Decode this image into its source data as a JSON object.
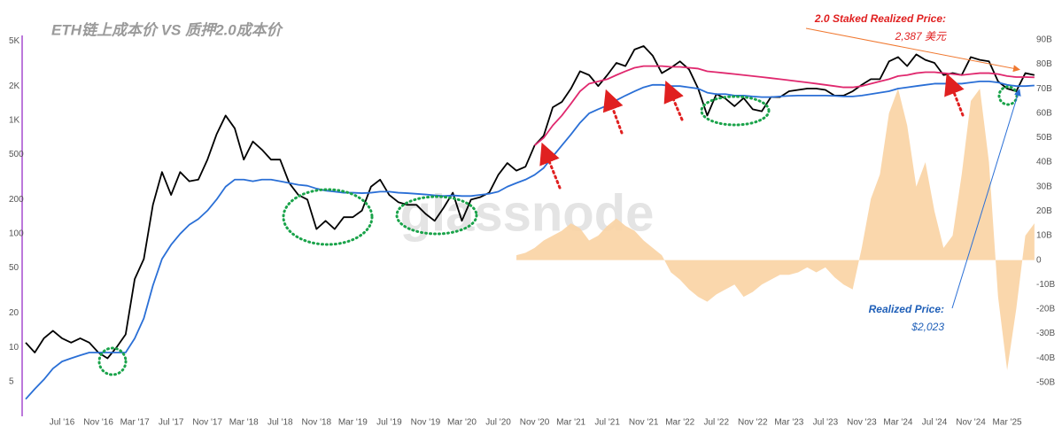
{
  "chart_data": {
    "type": "line",
    "title": "ETH链上成本价 VS 质押2.0成本价",
    "watermark": "glassnode",
    "yscale": "log",
    "ylim": [
      2.7,
      8000
    ],
    "yticks": [
      5,
      10,
      20,
      50,
      100,
      200,
      500,
      {
        "value": 1000,
        "label": "1K"
      },
      {
        "value": 2000,
        "label": "2K"
      },
      {
        "value": 5000,
        "label": "5K"
      }
    ],
    "y2lim": [
      -62,
      99
    ],
    "y2ticks": [
      {
        "value": -50,
        "label": "-50B"
      },
      {
        "value": -40,
        "label": "-40B"
      },
      {
        "value": -30,
        "label": "-30B"
      },
      {
        "value": -20,
        "label": "-20B"
      },
      {
        "value": -10,
        "label": "-10B"
      },
      0,
      {
        "value": 10,
        "label": "10B"
      },
      {
        "value": 20,
        "label": "20B"
      },
      {
        "value": 30,
        "label": "30B"
      },
      {
        "value": 40,
        "label": "40B"
      },
      {
        "value": 50,
        "label": "50B"
      },
      {
        "value": 60,
        "label": "60B"
      },
      {
        "value": 70,
        "label": "70B"
      },
      {
        "value": 80,
        "label": "80B"
      },
      {
        "value": 90,
        "label": "90B"
      }
    ],
    "xticks": [
      {
        "value": "2016-07",
        "label": "Jul '16"
      },
      {
        "value": "2016-11",
        "label": "Nov '16"
      },
      {
        "value": "2017-03",
        "label": "Mar '17"
      },
      {
        "value": "2017-07",
        "label": "Jul '17"
      },
      {
        "value": "2017-11",
        "label": "Nov '17"
      },
      {
        "value": "2018-03",
        "label": "Mar '18"
      },
      {
        "value": "2018-07",
        "label": "Jul '18"
      },
      {
        "value": "2018-11",
        "label": "Nov '18"
      },
      {
        "value": "2019-03",
        "label": "Mar '19"
      },
      {
        "value": "2019-07",
        "label": "Jul '19"
      },
      {
        "value": "2019-11",
        "label": "Nov '19"
      },
      {
        "value": "2020-03",
        "label": "Mar '20"
      },
      {
        "value": "2020-07",
        "label": "Jul '20"
      },
      {
        "value": "2020-11",
        "label": "Nov '20"
      },
      {
        "value": "2021-03",
        "label": "Mar '21"
      },
      {
        "value": "2021-07",
        "label": "Jul '21"
      },
      {
        "value": "2021-11",
        "label": "Nov '21"
      },
      {
        "value": "2022-03",
        "label": "Mar '22"
      },
      {
        "value": "2022-07",
        "label": "Jul '22"
      },
      {
        "value": "2022-11",
        "label": "Nov '22"
      },
      {
        "value": "2023-03",
        "label": "Mar '23"
      },
      {
        "value": "2023-07",
        "label": "Jul '23"
      },
      {
        "value": "2023-11",
        "label": "Nov '23"
      },
      {
        "value": "2024-03",
        "label": "Mar '24"
      },
      {
        "value": "2024-07",
        "label": "Jul '24"
      },
      {
        "value": "2024-11",
        "label": "Nov '24"
      },
      {
        "value": "2025-03",
        "label": "Mar '25"
      }
    ],
    "x": [
      "2016-03",
      "2016-04",
      "2016-05",
      "2016-06",
      "2016-07",
      "2016-08",
      "2016-09",
      "2016-10",
      "2016-11",
      "2016-12",
      "2017-01",
      "2017-02",
      "2017-03",
      "2017-04",
      "2017-05",
      "2017-06",
      "2017-07",
      "2017-08",
      "2017-09",
      "2017-10",
      "2017-11",
      "2017-12",
      "2018-01",
      "2018-02",
      "2018-03",
      "2018-04",
      "2018-05",
      "2018-06",
      "2018-07",
      "2018-08",
      "2018-09",
      "2018-10",
      "2018-11",
      "2018-12",
      "2019-01",
      "2019-02",
      "2019-03",
      "2019-04",
      "2019-05",
      "2019-06",
      "2019-07",
      "2019-08",
      "2019-09",
      "2019-10",
      "2019-11",
      "2019-12",
      "2020-01",
      "2020-02",
      "2020-03",
      "2020-04",
      "2020-05",
      "2020-06",
      "2020-07",
      "2020-08",
      "2020-09",
      "2020-10",
      "2020-11",
      "2020-12",
      "2021-01",
      "2021-02",
      "2021-03",
      "2021-04",
      "2021-05",
      "2021-06",
      "2021-07",
      "2021-08",
      "2021-09",
      "2021-10",
      "2021-11",
      "2021-12",
      "2022-01",
      "2022-02",
      "2022-03",
      "2022-04",
      "2022-05",
      "2022-06",
      "2022-07",
      "2022-08",
      "2022-09",
      "2022-10",
      "2022-11",
      "2022-12",
      "2023-01",
      "2023-02",
      "2023-03",
      "2023-04",
      "2023-05",
      "2023-06",
      "2023-07",
      "2023-08",
      "2023-09",
      "2023-10",
      "2023-11",
      "2023-12",
      "2024-01",
      "2024-02",
      "2024-03",
      "2024-04",
      "2024-05",
      "2024-06",
      "2024-07",
      "2024-08",
      "2024-09",
      "2024-10",
      "2024-11",
      "2024-12",
      "2025-01",
      "2025-02",
      "2025-03",
      "2025-04",
      "2025-05",
      "2025-06"
    ],
    "series": [
      {
        "kind": "area",
        "axis": "y2",
        "color": "#f9d3a3",
        "values": [
          null,
          null,
          null,
          null,
          null,
          null,
          null,
          null,
          null,
          null,
          null,
          null,
          null,
          null,
          null,
          null,
          null,
          null,
          null,
          null,
          null,
          null,
          null,
          null,
          null,
          null,
          null,
          null,
          null,
          null,
          null,
          null,
          null,
          null,
          null,
          null,
          null,
          null,
          null,
          null,
          null,
          null,
          null,
          null,
          null,
          null,
          null,
          null,
          null,
          null,
          null,
          null,
          null,
          null,
          2,
          3,
          5,
          8,
          10,
          12,
          15,
          13,
          8,
          10,
          14,
          17,
          14,
          12,
          8,
          5,
          2,
          -5,
          -8,
          -12,
          -15,
          -17,
          -14,
          -12,
          -10,
          -15,
          -13,
          -10,
          -8,
          -6,
          -6,
          -5,
          -3,
          -5,
          -3,
          -7,
          -10,
          -12,
          5,
          25,
          35,
          60,
          70,
          55,
          30,
          40,
          20,
          5,
          10,
          35,
          65,
          70,
          40,
          -15,
          -45,
          -20,
          10,
          15
        ]
      },
      {
        "kind": "line",
        "color": "#000000",
        "values": [
          11,
          9,
          12,
          14,
          12,
          11,
          12,
          11,
          9,
          8,
          10,
          13,
          40,
          60,
          180,
          350,
          220,
          350,
          290,
          300,
          450,
          750,
          1100,
          850,
          450,
          650,
          550,
          450,
          450,
          280,
          220,
          200,
          110,
          130,
          110,
          140,
          140,
          160,
          260,
          300,
          220,
          190,
          180,
          180,
          150,
          130,
          170,
          230,
          130,
          200,
          210,
          230,
          330,
          420,
          360,
          390,
          600,
          730,
          1300,
          1450,
          1900,
          2700,
          2500,
          2000,
          2500,
          3200,
          3000,
          4200,
          4500,
          3700,
          2600,
          2900,
          3300,
          2800,
          1900,
          1100,
          1700,
          1550,
          1330,
          1570,
          1250,
          1200,
          1600,
          1600,
          1800,
          1850,
          1900,
          1900,
          1850,
          1650,
          1650,
          1800,
          2050,
          2300,
          2300,
          3300,
          3600,
          3000,
          3800,
          3400,
          3200,
          2500,
          2600,
          2500,
          3600,
          3400,
          3300,
          2200,
          1900,
          1800,
          2600,
          2500
        ]
      },
      {
        "kind": "line",
        "name": "Realized Price:",
        "color": "#2a6fd6",
        "values": [
          3.5,
          4.3,
          5.2,
          6.5,
          7.5,
          8,
          8.5,
          9,
          9,
          9,
          9,
          9,
          12,
          18,
          35,
          60,
          80,
          100,
          120,
          135,
          160,
          200,
          260,
          300,
          300,
          290,
          300,
          300,
          290,
          280,
          270,
          265,
          250,
          240,
          235,
          230,
          230,
          228,
          230,
          235,
          235,
          230,
          228,
          225,
          222,
          218,
          215,
          218,
          215,
          215,
          220,
          225,
          235,
          260,
          280,
          300,
          330,
          380,
          480,
          600,
          750,
          950,
          1150,
          1250,
          1350,
          1500,
          1650,
          1800,
          1950,
          2050,
          2050,
          2000,
          2000,
          1950,
          1900,
          1750,
          1700,
          1700,
          1650,
          1650,
          1620,
          1600,
          1600,
          1620,
          1640,
          1650,
          1650,
          1650,
          1650,
          1640,
          1620,
          1620,
          1650,
          1700,
          1750,
          1800,
          1900,
          1950,
          2000,
          2050,
          2100,
          2100,
          2100,
          2100,
          2150,
          2200,
          2200,
          2150,
          2050,
          2000,
          2000,
          2023
        ]
      },
      {
        "kind": "line",
        "name": "2.0 Staked Realized Price:",
        "color": "#e0286e",
        "values": [
          null,
          null,
          null,
          null,
          null,
          null,
          null,
          null,
          null,
          null,
          null,
          null,
          null,
          null,
          null,
          null,
          null,
          null,
          null,
          null,
          null,
          null,
          null,
          null,
          null,
          null,
          null,
          null,
          null,
          null,
          null,
          null,
          null,
          null,
          null,
          null,
          null,
          null,
          null,
          null,
          null,
          null,
          null,
          null,
          null,
          null,
          null,
          null,
          null,
          null,
          null,
          null,
          null,
          null,
          null,
          null,
          600,
          700,
          900,
          1100,
          1400,
          1800,
          2100,
          2200,
          2300,
          2500,
          2700,
          2900,
          3000,
          3000,
          3000,
          2950,
          2950,
          2900,
          2850,
          2700,
          2650,
          2600,
          2550,
          2500,
          2450,
          2400,
          2350,
          2300,
          2250,
          2200,
          2150,
          2100,
          2050,
          2000,
          1950,
          1950,
          2000,
          2100,
          2200,
          2300,
          2450,
          2500,
          2600,
          2650,
          2650,
          2600,
          2550,
          2500,
          2550,
          2600,
          2600,
          2550,
          2450,
          2400,
          2400,
          2387
        ]
      }
    ],
    "annotations": [
      {
        "text": "2,387 美元"
      },
      {
        "text": "$2,023"
      }
    ]
  }
}
